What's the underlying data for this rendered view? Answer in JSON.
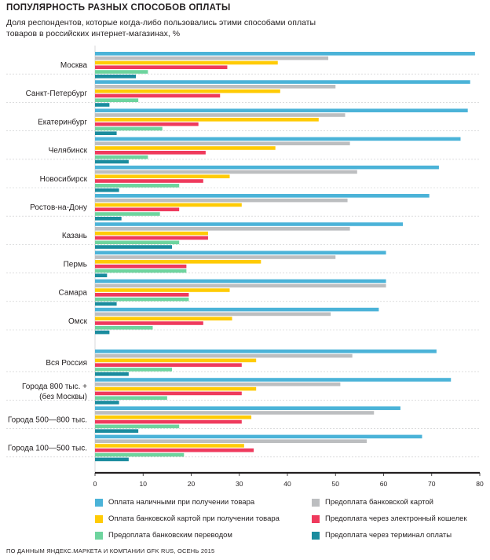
{
  "title": "ПОПУЛЯРНОСТЬ РАЗНЫХ СПОСОБОВ ОПЛАТЫ",
  "subtitle": "Доля респондентов, которые когда-либо пользовались этими способами оплаты товаров в российских интернет-магазинах, %",
  "source": "ПО ДАННЫМ ЯНДЕКС.МАРКЕТА И КОМПАНИИ GFK RUS, ОСЕНЬ 2015",
  "colors": {
    "cash": "#4bb3d8",
    "prepay_card": "#bcbec0",
    "card_on_delivery": "#ffcb05",
    "ewallet": "#ef3a5d",
    "bank_transfer": "#6ed49e",
    "terminal": "#1a8c9e"
  },
  "chart_data": {
    "type": "bar",
    "orientation": "horizontal",
    "categories": [
      "Москва",
      "Санкт-Петербург",
      "Екатеринбург",
      "Челябинск",
      "Новосибирск",
      "Ростов-на-Дону",
      "Казань",
      "Пермь",
      "Самара",
      "Омск",
      "Вся Россия",
      "Города 800 тыс. +\n(без Москвы)",
      "Города 500—800 тыс.",
      "Города 100—500 тыс."
    ],
    "group_gap_after_index": 9,
    "xlim": [
      0,
      80
    ],
    "xticks": [
      0,
      10,
      20,
      30,
      40,
      50,
      60,
      70,
      80
    ],
    "series": [
      {
        "name": "Оплата наличными при получении товара",
        "color_key": "cash",
        "values": [
          79,
          78,
          77.5,
          76,
          71.5,
          69.5,
          64,
          60.5,
          60.5,
          59,
          71,
          74,
          63.5,
          68
        ]
      },
      {
        "name": "Предоплата банковской картой",
        "color_key": "prepay_card",
        "values": [
          48.5,
          50,
          52,
          53,
          54.5,
          52.5,
          53,
          50,
          60.5,
          49,
          53.5,
          51,
          58,
          56.5
        ]
      },
      {
        "name": "Оплата банковской картой при получении товара",
        "color_key": "card_on_delivery",
        "values": [
          38,
          38.5,
          46.5,
          37.5,
          28,
          30.5,
          23.5,
          34.5,
          28,
          28.5,
          33.5,
          33.5,
          32.5,
          31
        ]
      },
      {
        "name": "Предоплата через электронный кошелек",
        "color_key": "ewallet",
        "values": [
          27.5,
          26,
          21.5,
          23,
          22.5,
          17.5,
          23.5,
          19,
          19.5,
          22.5,
          30.5,
          30.5,
          30.5,
          33
        ]
      },
      {
        "name": "Предоплата банковским переводом",
        "color_key": "bank_transfer",
        "values": [
          11,
          9,
          14,
          11,
          17.5,
          13.5,
          17.5,
          19,
          19.5,
          12,
          16,
          15,
          17.5,
          18.5
        ]
      },
      {
        "name": "Предоплата через терминал оплаты",
        "color_key": "terminal",
        "values": [
          8.5,
          3,
          4.5,
          7,
          5,
          5.5,
          16,
          2.5,
          4.5,
          3,
          7,
          5,
          9,
          7
        ]
      }
    ],
    "legend_placement": "bottom",
    "grid": true
  }
}
